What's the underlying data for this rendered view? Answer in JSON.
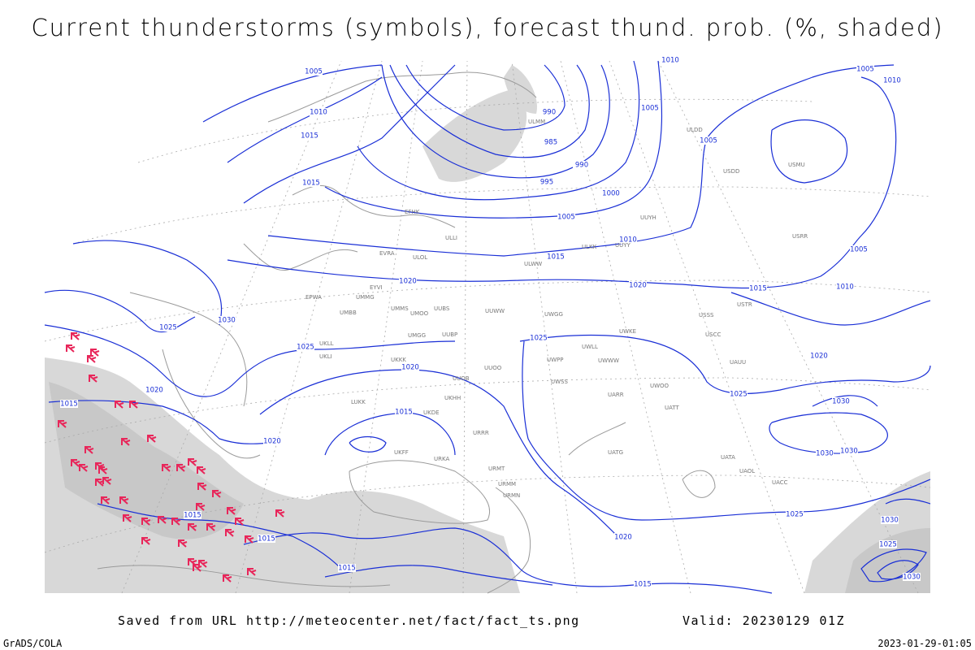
{
  "header": {
    "title": "Current thunderstorms (symbols), forecast thund. prob. (%, shaded)"
  },
  "footer": {
    "source": "Saved from URL http://meteocenter.net/fact/fact_ts.png",
    "valid": "Valid: 20230129 01Z",
    "software": "GrADS/COLA",
    "timestamp": "2023-01-29-01:05"
  },
  "isobar_labels": [
    "1005",
    "1010",
    "1010",
    "1015",
    "990",
    "985",
    "990",
    "995",
    "1000",
    "1005",
    "1005",
    "1005",
    "1010",
    "1015",
    "1005",
    "1010",
    "1015",
    "1020",
    "1020",
    "1015",
    "1005",
    "1010",
    "1030",
    "1025",
    "1025",
    "1020",
    "1020",
    "1015",
    "1025",
    "1020",
    "1025",
    "1015",
    "1020",
    "1030",
    "1030",
    "1030",
    "1015",
    "1015",
    "1015",
    "1025",
    "1020",
    "1015",
    "1025",
    "1030",
    "1030"
  ],
  "stations": [
    "ULMM",
    "EFHK",
    "ULLI",
    "EVRA",
    "ULOL",
    "ULWW",
    "ULKK",
    "UUYY",
    "EYVI",
    "UMMG",
    "EPWA",
    "UMBB",
    "UMMS",
    "UMOO",
    "UUBS",
    "UUWW",
    "UWGG",
    "UMGG",
    "UUBP",
    "UKLL",
    "UKLI",
    "UKKK",
    "UUOO",
    "UWPP",
    "UWWW",
    "UUOB",
    "LUKK",
    "UKHH",
    "UKDE",
    "URRR",
    "UKFF",
    "URKA",
    "URMT",
    "URMM",
    "URMN",
    "UATG",
    "UATA",
    "UAOL",
    "UACC",
    "USRR",
    "USSS",
    "USTR",
    "UUYH",
    "ULDD",
    "USDD",
    "USMU",
    "USCC",
    "UAUU",
    "UATT",
    "UARR",
    "UWOO",
    "UWKE",
    "UWLL",
    "UWSS"
  ]
}
